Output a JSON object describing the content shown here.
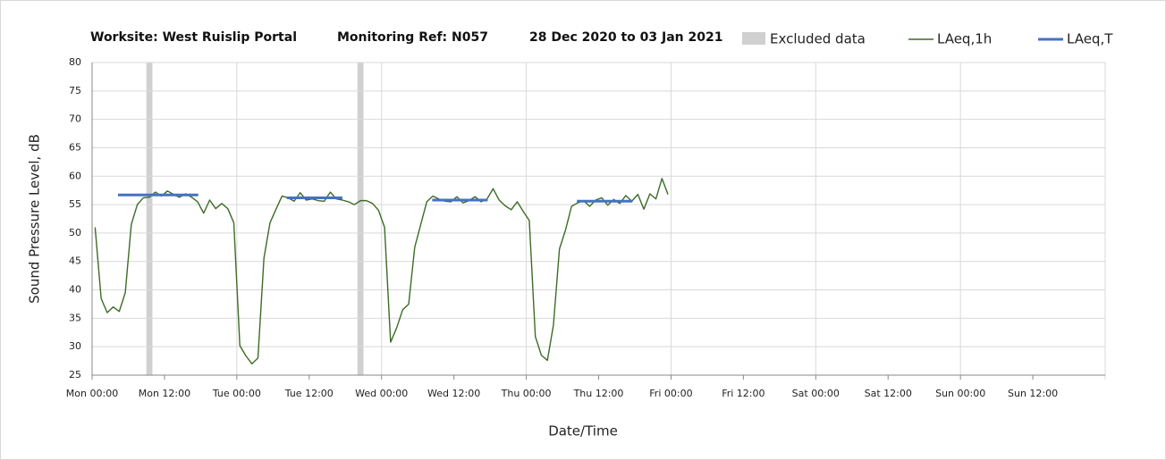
{
  "chart_data": {
    "type": "line",
    "title_parts": [
      "Worksite: West Ruislip Portal",
      "Monitoring Ref: N057",
      "28 Dec 2020 to 03 Jan 2021"
    ],
    "x_label": "Date/Time",
    "y_label": "Sound Pressure Level, dB",
    "xlim": [
      0,
      168
    ],
    "ylim": [
      25,
      80
    ],
    "yticks": [
      25,
      30,
      35,
      40,
      45,
      50,
      55,
      60,
      65,
      70,
      75,
      80
    ],
    "xticks": [
      {
        "value": 0,
        "label": "Mon 00:00"
      },
      {
        "value": 12,
        "label": "Mon 12:00"
      },
      {
        "value": 24,
        "label": "Tue 00:00"
      },
      {
        "value": 36,
        "label": "Tue 12:00"
      },
      {
        "value": 48,
        "label": "Wed 00:00"
      },
      {
        "value": 60,
        "label": "Wed 12:00"
      },
      {
        "value": 72,
        "label": "Thu 00:00"
      },
      {
        "value": 84,
        "label": "Thu 12:00"
      },
      {
        "value": 96,
        "label": "Fri 00:00"
      },
      {
        "value": 108,
        "label": "Fri 12:00"
      },
      {
        "value": 120,
        "label": "Sat 00:00"
      },
      {
        "value": 132,
        "label": "Sat 12:00"
      },
      {
        "value": 144,
        "label": "Sun 00:00"
      },
      {
        "value": 156,
        "label": "Sun 12:00"
      }
    ],
    "grid": true,
    "excluded": {
      "name": "Excluded data",
      "color": "#d0d0d0",
      "ranges": [
        [
          9,
          10
        ],
        [
          44,
          45
        ]
      ]
    },
    "series": [
      {
        "name": "LAeq,1h",
        "color": "#3d6b26",
        "x": [
          0.5,
          1.5,
          2.5,
          3.5,
          4.5,
          5.5,
          6.5,
          7.5,
          8.5,
          9.5,
          10.5,
          11.5,
          12.5,
          13.5,
          14.5,
          15.5,
          16.5,
          17.5,
          18.5,
          19.5,
          20.5,
          21.5,
          22.5,
          23.5,
          24.5,
          25.5,
          26.5,
          27.5,
          28.5,
          29.5,
          30.5,
          31.5,
          32.5,
          33.5,
          34.5,
          35.5,
          36.5,
          37.5,
          38.5,
          39.5,
          40.5,
          41.5,
          42.5,
          43.5,
          44.5,
          45.5,
          46.5,
          47.5,
          48.5,
          49.5,
          50.5,
          51.5,
          52.5,
          53.5,
          54.5,
          55.5,
          56.5,
          57.5,
          58.5,
          59.5,
          60.5,
          61.5,
          62.5,
          63.5,
          64.5,
          65.5,
          66.5,
          67.5,
          68.5,
          69.5,
          70.5,
          71.5,
          72.5,
          73.5,
          74.5,
          75.5,
          76.5,
          77.5,
          78.5,
          79.5,
          80.5,
          81.5,
          82.5,
          83.5,
          84.5,
          85.5,
          86.5,
          87.5,
          88.5,
          89.5,
          90.5,
          91.5,
          92.5,
          93.5,
          94.5,
          95.5
        ],
        "values": [
          51,
          38.5,
          36,
          37,
          36.2,
          39.5,
          51.5,
          55,
          56.2,
          56.3,
          57.2,
          56.5,
          57.4,
          56.8,
          56.3,
          56.9,
          56.3,
          55.5,
          53.5,
          55.8,
          54.3,
          55.2,
          54.3,
          51.8,
          30.2,
          28.4,
          27,
          28,
          45.6,
          51.8,
          54.2,
          56.5,
          56.2,
          55.6,
          57.1,
          55.8,
          56,
          55.7,
          55.6,
          57.2,
          56,
          55.8,
          55.5,
          55,
          55.7,
          55.7,
          55.2,
          54,
          51,
          30.8,
          33.3,
          36.5,
          37.5,
          47.5,
          51.5,
          55.5,
          56.5,
          56,
          55.6,
          55.5,
          56.4,
          55.3,
          55.7,
          56.4,
          55.5,
          56,
          57.8,
          55.8,
          54.8,
          54.1,
          55.5,
          53.8,
          52.2,
          31.8,
          28.5,
          27.6,
          33.8,
          47.2,
          50.5,
          54.7,
          55.3,
          55.7,
          54.7,
          55.8,
          56.2,
          54.9,
          55.9,
          55.2,
          56.6,
          55.6,
          56.8,
          54.2,
          56.9,
          56,
          59.6,
          56.8
        ]
      },
      {
        "name": "LAeq,T",
        "color": "#4472c4",
        "x": [
          4.3,
          17.6,
          null,
          32.3,
          41.5,
          null,
          56.4,
          65.6,
          null,
          80.4,
          89.6
        ],
        "values": [
          56.7,
          56.7,
          null,
          56.2,
          56.2,
          null,
          55.8,
          55.8,
          null,
          55.6,
          55.6
        ]
      }
    ]
  }
}
